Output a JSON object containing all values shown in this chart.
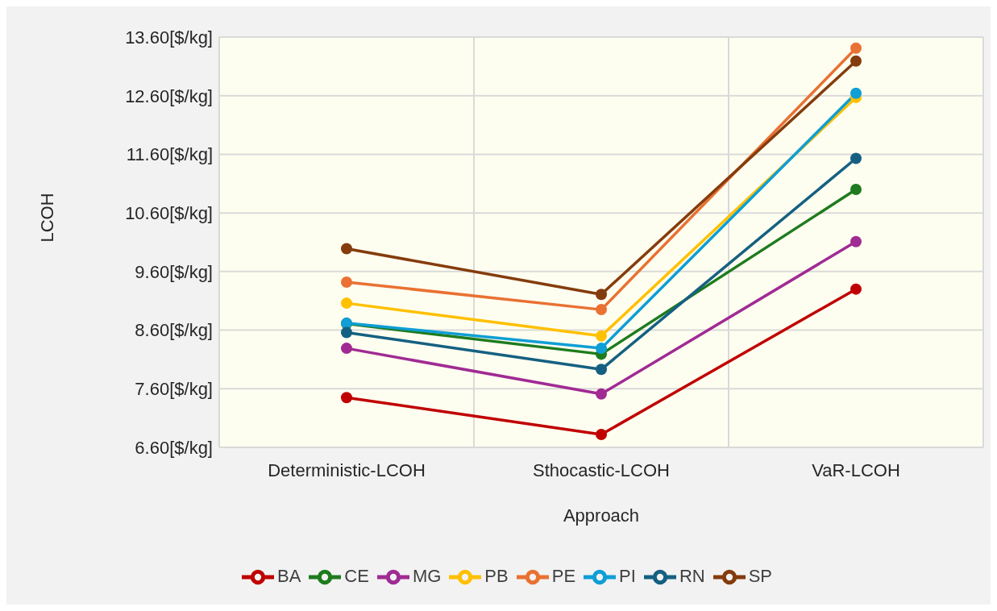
{
  "chart_data": {
    "type": "line",
    "xlabel": "Approach",
    "ylabel": "LCOH",
    "categories": [
      "Deterministic-LCOH",
      "Sthocastic-LCOH",
      "VaR-LCOH"
    ],
    "series": [
      {
        "name": "BA",
        "color": "#c00000",
        "values": [
          7.45,
          6.82,
          9.3
        ]
      },
      {
        "name": "CE",
        "color": "#1e7b1e",
        "values": [
          8.71,
          8.19,
          11.0
        ]
      },
      {
        "name": "MG",
        "color": "#a02b93",
        "values": [
          8.29,
          7.51,
          10.11
        ]
      },
      {
        "name": "PB",
        "color": "#ffc000",
        "values": [
          9.06,
          8.5,
          12.57
        ]
      },
      {
        "name": "PE",
        "color": "#e97132",
        "values": [
          9.42,
          8.95,
          13.41
        ]
      },
      {
        "name": "PI",
        "color": "#0f9ed5",
        "values": [
          8.72,
          8.29,
          12.64
        ]
      },
      {
        "name": "RN",
        "color": "#156082",
        "values": [
          8.56,
          7.93,
          11.53
        ]
      },
      {
        "name": "SP",
        "color": "#843c0c",
        "values": [
          9.99,
          9.21,
          13.19
        ]
      }
    ],
    "ylim": [
      6.6,
      13.6
    ],
    "yticks": [
      {
        "value": 6.6,
        "label": "6.60[$/kg]"
      },
      {
        "value": 7.6,
        "label": "7.60[$/kg]"
      },
      {
        "value": 8.6,
        "label": "8.60[$/kg]"
      },
      {
        "value": 9.6,
        "label": "9.60[$/kg]"
      },
      {
        "value": 10.6,
        "label": "10.60[$/kg]"
      },
      {
        "value": 11.6,
        "label": "11.60[$/kg]"
      },
      {
        "value": 12.6,
        "label": "12.60[$/kg]"
      },
      {
        "value": 13.6,
        "label": "13.60[$/kg]"
      }
    ],
    "grid": true,
    "legend": "bottom",
    "marker": "circle",
    "line_style": "solid"
  }
}
